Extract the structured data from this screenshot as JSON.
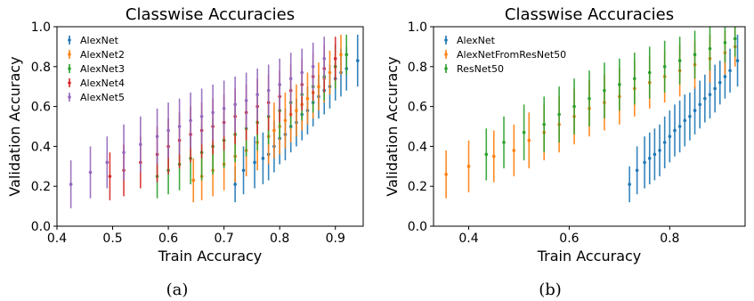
{
  "captions": {
    "left": "(a)",
    "right": "(b)"
  },
  "chart_data": [
    {
      "type": "scatter",
      "title": "Classwise Accuracies",
      "xlabel": "Train Accuracy",
      "ylabel": "Validation Accuracy",
      "xlim": [
        0.4,
        0.95
      ],
      "ylim": [
        0.0,
        1.0
      ],
      "xticks": [
        0.4,
        0.5,
        0.6,
        0.7,
        0.8,
        0.9
      ],
      "xtick_labels": [
        "0.4",
        "0.5",
        "0.6",
        "0.7",
        "0.8",
        "0.9"
      ],
      "yticks": [
        0.0,
        0.2,
        0.4,
        0.6,
        0.8,
        1.0
      ],
      "ytick_labels": [
        "0.0",
        "0.2",
        "0.4",
        "0.6",
        "0.8",
        "1.0"
      ],
      "error_bars": true,
      "legend_position": "top-left",
      "series": [
        {
          "name": "AlexNet",
          "color": "#1f77b4",
          "x": [
            0.72,
            0.735,
            0.755,
            0.77,
            0.78,
            0.79,
            0.8,
            0.81,
            0.82,
            0.83,
            0.84,
            0.85,
            0.86,
            0.87,
            0.88,
            0.89,
            0.9,
            0.91,
            0.92,
            0.94
          ],
          "y": [
            0.21,
            0.28,
            0.32,
            0.34,
            0.36,
            0.4,
            0.44,
            0.46,
            0.5,
            0.52,
            0.56,
            0.58,
            0.62,
            0.65,
            0.68,
            0.7,
            0.74,
            0.77,
            0.79,
            0.83
          ],
          "err": [
            0.09,
            0.12,
            0.13,
            0.13,
            0.13,
            0.13,
            0.13,
            0.13,
            0.13,
            0.12,
            0.13,
            0.12,
            0.12,
            0.11,
            0.12,
            0.11,
            0.11,
            0.12,
            0.11,
            0.13
          ]
        },
        {
          "name": "AlexNet2",
          "color": "#ff7f0e",
          "x": [
            0.645,
            0.66,
            0.68,
            0.7,
            0.72,
            0.74,
            0.76,
            0.78,
            0.79,
            0.8,
            0.81,
            0.82,
            0.83,
            0.84,
            0.85,
            0.86,
            0.87,
            0.88,
            0.89,
            0.9,
            0.91
          ],
          "y": [
            0.23,
            0.25,
            0.28,
            0.31,
            0.35,
            0.38,
            0.42,
            0.45,
            0.48,
            0.5,
            0.53,
            0.56,
            0.58,
            0.61,
            0.64,
            0.67,
            0.7,
            0.74,
            0.77,
            0.8,
            0.86
          ],
          "err": [
            0.11,
            0.12,
            0.13,
            0.13,
            0.13,
            0.13,
            0.14,
            0.14,
            0.14,
            0.14,
            0.14,
            0.14,
            0.13,
            0.13,
            0.13,
            0.13,
            0.12,
            0.12,
            0.11,
            0.11,
            0.1
          ]
        },
        {
          "name": "AlexNet3",
          "color": "#2ca02c",
          "x": [
            0.58,
            0.6,
            0.62,
            0.64,
            0.66,
            0.68,
            0.7,
            0.72,
            0.74,
            0.76,
            0.78,
            0.8,
            0.82,
            0.84,
            0.86,
            0.88,
            0.9,
            0.92
          ],
          "y": [
            0.25,
            0.28,
            0.31,
            0.34,
            0.37,
            0.4,
            0.43,
            0.46,
            0.49,
            0.52,
            0.55,
            0.58,
            0.62,
            0.66,
            0.7,
            0.75,
            0.8,
            0.86
          ],
          "err": [
            0.11,
            0.12,
            0.13,
            0.13,
            0.14,
            0.14,
            0.14,
            0.14,
            0.14,
            0.14,
            0.14,
            0.14,
            0.13,
            0.13,
            0.13,
            0.12,
            0.11,
            0.1
          ]
        },
        {
          "name": "AlexNet4",
          "color": "#d62728",
          "x": [
            0.495,
            0.52,
            0.55,
            0.58,
            0.6,
            0.62,
            0.64,
            0.66,
            0.68,
            0.7,
            0.72,
            0.74,
            0.76,
            0.78,
            0.8,
            0.82,
            0.84,
            0.86,
            0.88,
            0.9
          ],
          "y": [
            0.25,
            0.28,
            0.32,
            0.36,
            0.4,
            0.43,
            0.46,
            0.48,
            0.5,
            0.52,
            0.55,
            0.57,
            0.6,
            0.62,
            0.65,
            0.68,
            0.71,
            0.75,
            0.79,
            0.84
          ],
          "err": [
            0.12,
            0.13,
            0.13,
            0.14,
            0.14,
            0.14,
            0.14,
            0.14,
            0.14,
            0.14,
            0.14,
            0.14,
            0.14,
            0.14,
            0.13,
            0.13,
            0.13,
            0.12,
            0.12,
            0.11
          ]
        },
        {
          "name": "AlexNet5",
          "color": "#9467bd",
          "x": [
            0.425,
            0.46,
            0.49,
            0.52,
            0.55,
            0.58,
            0.6,
            0.62,
            0.64,
            0.66,
            0.68,
            0.7,
            0.72,
            0.74,
            0.76,
            0.78,
            0.8,
            0.82,
            0.84,
            0.86,
            0.88
          ],
          "y": [
            0.21,
            0.27,
            0.32,
            0.37,
            0.41,
            0.45,
            0.48,
            0.5,
            0.53,
            0.55,
            0.57,
            0.59,
            0.61,
            0.63,
            0.66,
            0.68,
            0.71,
            0.74,
            0.77,
            0.8,
            0.84
          ],
          "err": [
            0.12,
            0.13,
            0.13,
            0.14,
            0.14,
            0.14,
            0.14,
            0.14,
            0.14,
            0.14,
            0.14,
            0.14,
            0.14,
            0.14,
            0.13,
            0.13,
            0.13,
            0.13,
            0.12,
            0.12,
            0.11
          ]
        }
      ]
    },
    {
      "type": "scatter",
      "title": "Classwise Accuracies",
      "xlabel": "Train Accuracy",
      "ylabel": "Validation Accuracy",
      "xlim": [
        0.33,
        0.95
      ],
      "ylim": [
        0.0,
        1.0
      ],
      "xticks": [
        0.4,
        0.6,
        0.8
      ],
      "xtick_labels": [
        "0.4",
        "0.6",
        "0.8"
      ],
      "yticks": [
        0.0,
        0.2,
        0.4,
        0.6,
        0.8,
        1.0
      ],
      "ytick_labels": [
        "0.0",
        "0.2",
        "0.4",
        "0.6",
        "0.8",
        "1.0"
      ],
      "error_bars": true,
      "legend_position": "top-left",
      "series": [
        {
          "name": "AlexNet",
          "color": "#1f77b4",
          "x": [
            0.72,
            0.735,
            0.75,
            0.76,
            0.77,
            0.78,
            0.79,
            0.8,
            0.81,
            0.82,
            0.83,
            0.84,
            0.85,
            0.86,
            0.87,
            0.88,
            0.89,
            0.9,
            0.91,
            0.92,
            0.935
          ],
          "y": [
            0.21,
            0.28,
            0.32,
            0.34,
            0.36,
            0.38,
            0.42,
            0.45,
            0.48,
            0.5,
            0.53,
            0.55,
            0.58,
            0.61,
            0.64,
            0.66,
            0.69,
            0.72,
            0.75,
            0.78,
            0.83
          ],
          "err": [
            0.09,
            0.12,
            0.13,
            0.13,
            0.13,
            0.13,
            0.13,
            0.13,
            0.13,
            0.13,
            0.13,
            0.12,
            0.12,
            0.12,
            0.12,
            0.12,
            0.12,
            0.11,
            0.11,
            0.11,
            0.13
          ]
        },
        {
          "name": "AlexNetFromResNet50",
          "color": "#ff7f0e",
          "x": [
            0.355,
            0.4,
            0.45,
            0.49,
            0.52,
            0.55,
            0.58,
            0.61,
            0.64,
            0.67,
            0.7,
            0.73,
            0.76,
            0.79,
            0.82,
            0.85,
            0.88,
            0.91,
            0.93
          ],
          "y": [
            0.26,
            0.3,
            0.35,
            0.38,
            0.43,
            0.47,
            0.51,
            0.55,
            0.59,
            0.62,
            0.65,
            0.69,
            0.72,
            0.75,
            0.78,
            0.81,
            0.84,
            0.87,
            0.9
          ],
          "err": [
            0.12,
            0.13,
            0.13,
            0.13,
            0.14,
            0.14,
            0.14,
            0.14,
            0.14,
            0.14,
            0.14,
            0.14,
            0.13,
            0.13,
            0.13,
            0.12,
            0.12,
            0.11,
            0.1
          ]
        },
        {
          "name": "ResNet50",
          "color": "#2ca02c",
          "x": [
            0.435,
            0.47,
            0.51,
            0.55,
            0.58,
            0.61,
            0.64,
            0.67,
            0.7,
            0.73,
            0.76,
            0.79,
            0.82,
            0.85,
            0.88,
            0.91,
            0.93
          ],
          "y": [
            0.36,
            0.42,
            0.47,
            0.51,
            0.56,
            0.6,
            0.64,
            0.68,
            0.71,
            0.74,
            0.77,
            0.8,
            0.83,
            0.86,
            0.89,
            0.92,
            0.94
          ],
          "err": [
            0.13,
            0.13,
            0.14,
            0.14,
            0.14,
            0.14,
            0.14,
            0.14,
            0.13,
            0.13,
            0.13,
            0.13,
            0.12,
            0.12,
            0.11,
            0.1,
            0.09
          ]
        }
      ]
    }
  ]
}
